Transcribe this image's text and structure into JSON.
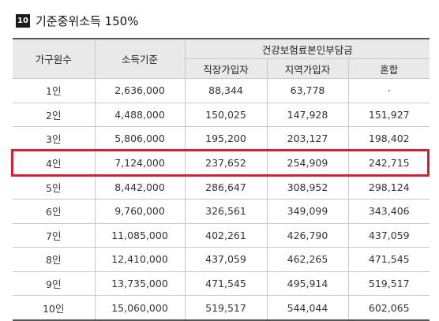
{
  "title": {
    "badge": "10",
    "text": "기준중위소득 150%"
  },
  "table": {
    "headers": {
      "household": "가구원수",
      "income": "소득기준",
      "group": "건강보험료본인부담금",
      "employee": "직장가입자",
      "regional": "지역가입자",
      "mixed": "혼합"
    },
    "rows": [
      {
        "household": "1인",
        "income": "2,636,000",
        "employee": "88,344",
        "regional": "63,778",
        "mixed": "·"
      },
      {
        "household": "2인",
        "income": "4,488,000",
        "employee": "150,025",
        "regional": "147,928",
        "mixed": "151,927"
      },
      {
        "household": "3인",
        "income": "5,806,000",
        "employee": "195,200",
        "regional": "203,127",
        "mixed": "198,402"
      },
      {
        "household": "4인",
        "income": "7,124,000",
        "employee": "237,652",
        "regional": "254,909",
        "mixed": "242,715"
      },
      {
        "household": "5인",
        "income": "8,442,000",
        "employee": "286,647",
        "regional": "308,952",
        "mixed": "298,124"
      },
      {
        "household": "6인",
        "income": "9,760,000",
        "employee": "326,561",
        "regional": "349,099",
        "mixed": "343,406"
      },
      {
        "household": "7인",
        "income": "11,085,000",
        "employee": "402,261",
        "regional": "426,790",
        "mixed": "437,059"
      },
      {
        "household": "8인",
        "income": "12,410,000",
        "employee": "437,059",
        "regional": "462,265",
        "mixed": "471,545"
      },
      {
        "household": "9인",
        "income": "13,735,000",
        "employee": "471,545",
        "regional": "495,914",
        "mixed": "519,517"
      },
      {
        "household": "10인",
        "income": "15,060,000",
        "employee": "519,517",
        "regional": "544,044",
        "mixed": "602,065"
      }
    ]
  },
  "highlight": {
    "row_index": 3,
    "color": "#d2202f"
  }
}
